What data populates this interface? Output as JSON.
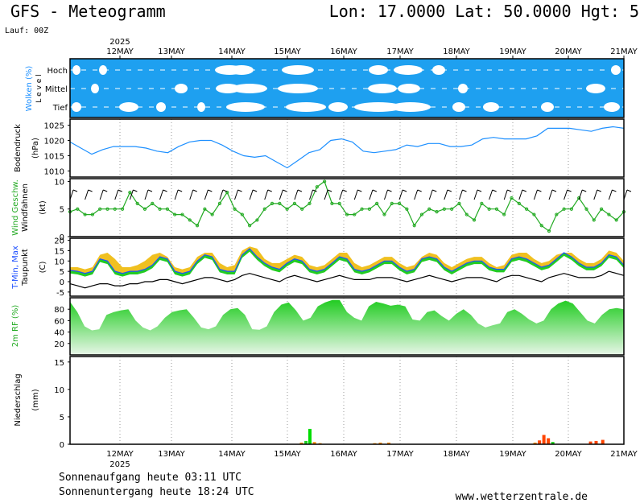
{
  "header": {
    "title": "GFS - Meteogramm",
    "coords": "Lon: 17.0000 Lat: 50.0000 Hgt: 5",
    "run": "Lauf: 00Z"
  },
  "footer": {
    "sunrise": "Sonnenaufgang heute 03:11 UTC",
    "sunset": "Sonnenuntergang heute 18:24 UTC",
    "site": "www.wetterzentrale.de"
  },
  "chart_data": {
    "type": "meteogram",
    "year": "2025",
    "days": [
      "12MAY",
      "13MAY",
      "14MAY",
      "15MAY",
      "16MAY",
      "17MAY",
      "18MAY",
      "19MAY",
      "20MAY",
      "21MAY"
    ],
    "panels": {
      "clouds": {
        "ylabel": "Wolken (%)",
        "level_label": "L e v e l",
        "levels": [
          "Hoch",
          "Mittel",
          "Tief"
        ]
      },
      "pressure": {
        "ylabel1": "Bodendruck",
        "ylabel2": "(hPa)",
        "ticks": [
          1010,
          1015,
          1020,
          1025
        ],
        "ylim": [
          1008,
          1027
        ],
        "values": [
          1019.5,
          1017.5,
          1015.5,
          1017,
          1018,
          1018,
          1018,
          1017.5,
          1016.5,
          1016,
          1018,
          1019.5,
          1020,
          1020,
          1018.5,
          1016.5,
          1015,
          1014.5,
          1015,
          1013,
          1011,
          1013.5,
          1016,
          1017,
          1020,
          1020.5,
          1019.5,
          1016.5,
          1016,
          1016.5,
          1017,
          1018.5,
          1018,
          1019,
          1019,
          1018,
          1018,
          1018.5,
          1020.5,
          1021,
          1020.5,
          1020.5,
          1020.5,
          1021.5,
          1024,
          1024,
          1024,
          1023.5,
          1023,
          1024,
          1024.5,
          1024
        ]
      },
      "wind": {
        "ylabel1": "Wind Geschw.",
        "ylabel2": "Windfahnen",
        "ylabel3": "(kt)",
        "ticks": [
          0,
          5,
          10
        ],
        "ylim": [
          0,
          10.5
        ],
        "values": [
          4.5,
          5,
          4,
          4,
          5,
          5,
          5,
          5,
          8,
          6,
          5,
          6,
          5,
          5,
          4,
          4,
          3,
          2,
          5,
          4,
          6,
          8,
          5,
          4,
          2,
          3,
          5,
          6,
          6,
          5,
          6,
          5,
          6,
          9,
          10,
          6,
          6,
          4,
          4,
          5,
          5,
          6,
          4,
          6,
          6,
          5,
          2,
          4,
          5,
          4.5,
          5,
          5,
          6,
          4,
          3,
          6,
          5,
          5,
          4,
          7,
          6,
          5,
          4,
          2,
          1,
          4,
          5,
          5,
          7,
          5,
          3,
          5,
          4,
          3,
          4.5
        ]
      },
      "temp": {
        "ylabel1": "T-Min, Max",
        "ylabel2": "Taupunkt",
        "ylabel3": "(C)",
        "ticks": [
          -5,
          0,
          5,
          10,
          15,
          20
        ],
        "ylim": [
          -7,
          21
        ],
        "temp": [
          5.5,
          5,
          4,
          5,
          11,
          10,
          5,
          4,
          5,
          5,
          6,
          8,
          12,
          11,
          5,
          4,
          5,
          10,
          13,
          12,
          6,
          5,
          5,
          13,
          16,
          12,
          9,
          7,
          6,
          9,
          11,
          10,
          6,
          5,
          6,
          9,
          12,
          11,
          6,
          5,
          6,
          8,
          10,
          10,
          7,
          5,
          6,
          11,
          12,
          11,
          7,
          5,
          7,
          9,
          10,
          10,
          7,
          6,
          6,
          11,
          12,
          11,
          9,
          7,
          8,
          11,
          14,
          12,
          9,
          7,
          7,
          9,
          13,
          12,
          8
        ],
        "max": [
          7,
          7,
          6,
          7,
          13,
          14,
          11,
          7,
          7,
          8,
          10,
          13,
          14,
          12,
          7,
          6,
          7,
          12,
          14,
          14,
          9,
          7,
          8,
          15,
          17,
          16,
          11,
          9,
          9,
          11,
          13,
          12,
          8,
          7,
          8,
          11,
          14,
          14,
          9,
          7,
          8,
          10,
          12,
          12,
          9,
          7,
          8,
          12,
          14,
          13,
          9,
          7,
          9,
          11,
          12,
          12,
          9,
          7,
          8,
          13,
          14,
          14,
          11,
          9,
          10,
          13,
          14,
          14,
          11,
          9,
          9,
          11,
          15,
          14,
          10
        ],
        "dew": [
          -1,
          -2,
          -3,
          -2,
          -1,
          -1,
          -2,
          -2,
          -1,
          -1,
          0,
          0,
          1,
          1,
          0,
          -1,
          0,
          1,
          2,
          2,
          1,
          0,
          1,
          3,
          4,
          3,
          2,
          1,
          0,
          2,
          3,
          2,
          1,
          0,
          1,
          2,
          3,
          2,
          1,
          1,
          1,
          2,
          2,
          2,
          1,
          0,
          1,
          2,
          3,
          2,
          1,
          0,
          1,
          2,
          2,
          2,
          1,
          0,
          2,
          3,
          3,
          2,
          1,
          0,
          2,
          3,
          4,
          3,
          2,
          2,
          2,
          3,
          5,
          4,
          3
        ]
      },
      "rh": {
        "ylabel": "2m RF (%)",
        "ticks": [
          20,
          40,
          60,
          80
        ],
        "ylim": [
          0,
          100
        ],
        "values": [
          93,
          75,
          50,
          43,
          45,
          70,
          75,
          78,
          80,
          60,
          48,
          43,
          50,
          65,
          75,
          78,
          80,
          65,
          48,
          45,
          50,
          70,
          80,
          82,
          70,
          45,
          44,
          50,
          75,
          88,
          92,
          78,
          60,
          65,
          85,
          92,
          96,
          96,
          75,
          65,
          60,
          85,
          93,
          90,
          86,
          88,
          85,
          62,
          60,
          75,
          78,
          68,
          60,
          72,
          80,
          70,
          55,
          48,
          52,
          55,
          75,
          80,
          72,
          62,
          55,
          60,
          80,
          90,
          95,
          90,
          75,
          60,
          55,
          70,
          80,
          82,
          80
        ]
      },
      "precip": {
        "ylabel1": "Niederschlag",
        "ylabel2": "(mm)",
        "ticks": [
          0,
          5,
          10,
          15
        ],
        "ylim": [
          0,
          16
        ],
        "bars": [
          {
            "day": 4.25,
            "value": 0.3,
            "color": "#ff8c00"
          },
          {
            "day": 4.33,
            "value": 0.6,
            "color": "#22cc22"
          },
          {
            "day": 4.4,
            "value": 2.8,
            "color": "#00dd00"
          },
          {
            "day": 4.48,
            "value": 0.4,
            "color": "#ff8c00"
          },
          {
            "day": 4.58,
            "value": 0.2,
            "color": "#ff8c00"
          },
          {
            "day": 5.55,
            "value": 0.2,
            "color": "#ff8c00"
          },
          {
            "day": 5.65,
            "value": 0.3,
            "color": "#ff8c00"
          },
          {
            "day": 5.8,
            "value": 0.3,
            "color": "#ff8c00"
          },
          {
            "day": 8.4,
            "value": 0.3,
            "color": "#ff8c00"
          },
          {
            "day": 8.48,
            "value": 0.7,
            "color": "#ff4400"
          },
          {
            "day": 8.56,
            "value": 1.7,
            "color": "#ff4400"
          },
          {
            "day": 8.64,
            "value": 1.1,
            "color": "#ff4400"
          },
          {
            "day": 8.72,
            "value": 0.4,
            "color": "#00cc00"
          },
          {
            "day": 9.4,
            "value": 0.5,
            "color": "#ff4400"
          },
          {
            "day": 9.5,
            "value": 0.6,
            "color": "#ff4400"
          },
          {
            "day": 9.62,
            "value": 0.8,
            "color": "#ff4400"
          }
        ]
      }
    }
  },
  "colors": {
    "cloud_bg": "#1ea0f0",
    "cloud": "#ffffff",
    "pressure_line": "#1e90ff",
    "wind_line": "#22aa22",
    "temp_line": "#1e50ff",
    "dew_line": "#000000",
    "rh_fill": "#22cc22"
  }
}
